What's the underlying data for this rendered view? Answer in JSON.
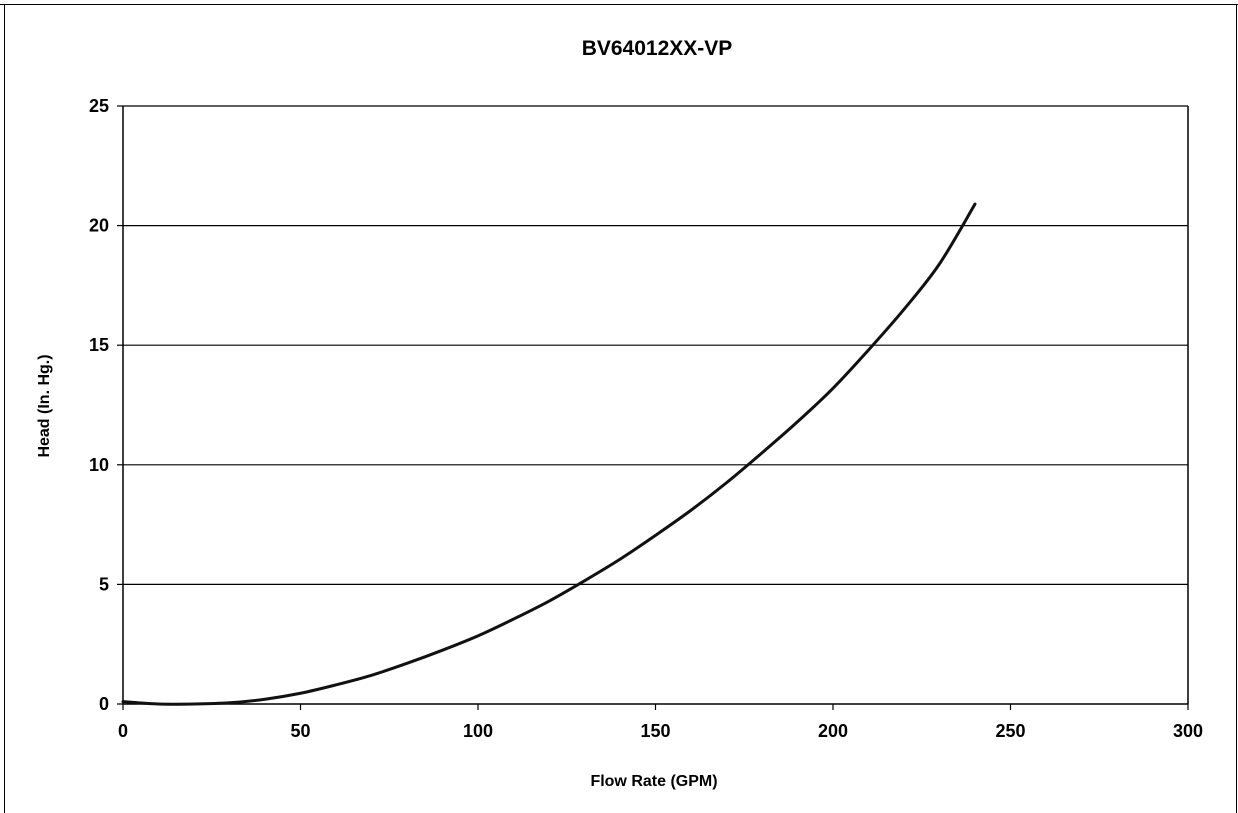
{
  "chart_data": {
    "type": "line",
    "title": "BV64012XX-VP",
    "xlabel": "Flow Rate (GPM)",
    "ylabel": "Head (In. Hg.)",
    "xlim": [
      0,
      300
    ],
    "ylim": [
      0,
      25
    ],
    "x_ticks": [
      0,
      50,
      100,
      150,
      200,
      250,
      300
    ],
    "y_ticks": [
      0,
      5,
      10,
      15,
      20,
      25
    ],
    "grid": "horizontal",
    "colors": {
      "line": "#111111",
      "grid": "#000000",
      "background": "#ffffff"
    },
    "series": [
      {
        "x": [
          0,
          10,
          20,
          30,
          40,
          50,
          60,
          70,
          80,
          90,
          100,
          110,
          120,
          130,
          140,
          150,
          160,
          170,
          180,
          190,
          200,
          210,
          220,
          230,
          240
        ],
        "values": [
          0.1,
          0.0,
          0.0,
          0.05,
          0.2,
          0.45,
          0.8,
          1.2,
          1.7,
          2.25,
          2.85,
          3.55,
          4.3,
          5.15,
          6.05,
          7.05,
          8.1,
          9.25,
          10.5,
          11.8,
          13.2,
          14.8,
          16.5,
          18.4,
          20.9
        ]
      }
    ]
  }
}
